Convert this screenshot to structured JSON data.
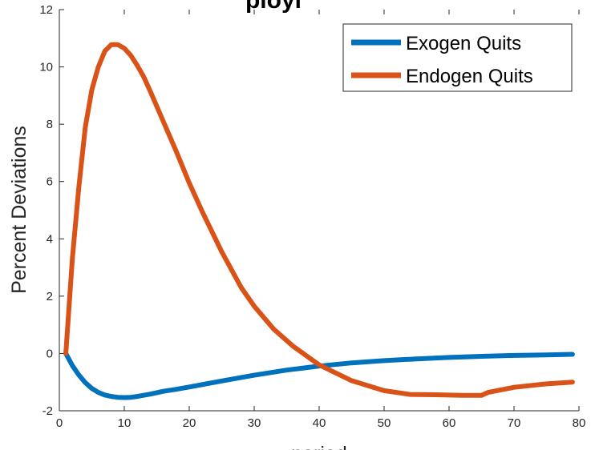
{
  "chart_data": {
    "type": "line",
    "title": "ployi",
    "xlabel": "period",
    "ylabel": "Percent Deviations",
    "xlim": [
      0,
      80
    ],
    "ylim": [
      -2,
      12
    ],
    "xticks": [
      0,
      10,
      20,
      30,
      40,
      50,
      60,
      70,
      80
    ],
    "yticks": [
      -2,
      0,
      2,
      4,
      6,
      8,
      10,
      12
    ],
    "grid": false,
    "legend_position": "top-right",
    "series": [
      {
        "name": "Exogen Quits",
        "color": "#0072bd",
        "x": [
          1,
          2,
          3,
          4,
          5,
          6,
          7,
          8,
          9,
          10,
          11,
          12,
          14,
          16,
          18,
          20,
          25,
          30,
          35,
          40,
          45,
          50,
          55,
          60,
          65,
          70,
          75,
          79
        ],
        "y": [
          0,
          -0.42,
          -0.75,
          -1.02,
          -1.22,
          -1.36,
          -1.45,
          -1.5,
          -1.53,
          -1.54,
          -1.53,
          -1.5,
          -1.42,
          -1.32,
          -1.25,
          -1.17,
          -0.96,
          -0.76,
          -0.58,
          -0.44,
          -0.33,
          -0.25,
          -0.19,
          -0.14,
          -0.1,
          -0.07,
          -0.05,
          -0.03
        ]
      },
      {
        "name": "Endogen Quits",
        "color": "#d95319",
        "x": [
          1,
          2,
          3,
          4,
          5,
          6,
          7,
          8,
          9,
          10,
          11,
          12,
          13,
          14,
          16,
          18,
          20,
          22,
          25,
          28,
          30,
          33,
          36,
          40,
          45,
          50,
          54,
          58,
          62,
          65,
          66,
          70,
          75,
          79
        ],
        "y": [
          0,
          3.3,
          5.8,
          7.9,
          9.2,
          10.0,
          10.55,
          10.78,
          10.78,
          10.65,
          10.4,
          10.05,
          9.65,
          9.15,
          8.1,
          7.05,
          5.95,
          4.95,
          3.55,
          2.3,
          1.65,
          0.85,
          0.25,
          -0.4,
          -0.95,
          -1.3,
          -1.43,
          -1.44,
          -1.46,
          -1.46,
          -1.36,
          -1.18,
          -1.06,
          -1.0
        ]
      }
    ]
  }
}
